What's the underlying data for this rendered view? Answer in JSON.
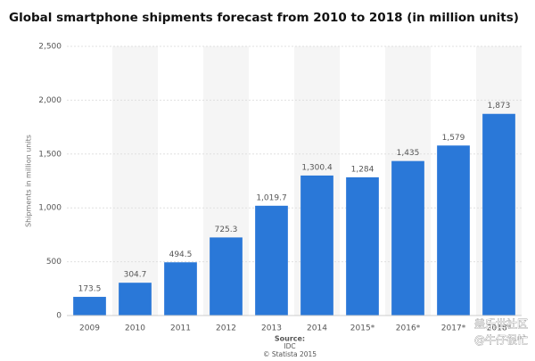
{
  "chart_data": {
    "type": "bar",
    "title": "Global smartphone shipments forecast from 2010 to 2018 (in million units)",
    "y_label": "Shipments in million units",
    "categories": [
      "2009",
      "2010",
      "2011",
      "2012",
      "2013",
      "2014",
      "2015*",
      "2016*",
      "2017*",
      "2018*"
    ],
    "values": [
      173.5,
      304.7,
      494.5,
      725.3,
      1019.7,
      1300.4,
      1284,
      1435,
      1579,
      1873
    ],
    "value_labels": [
      "173.5",
      "304.7",
      "494.5",
      "725.3",
      "1,019.7",
      "1,300.4",
      "1,284",
      "1,435",
      "1,579",
      "1,873"
    ],
    "color": "#2a78d8",
    "ylim": [
      0,
      2500
    ],
    "yticks": [
      0,
      500,
      {
        "value": 1000,
        "label": "1,000"
      },
      {
        "value": 1500,
        "label": "1,500"
      },
      {
        "value": 2000,
        "label": "2,000"
      },
      {
        "value": 2500,
        "label": "2,500"
      }
    ],
    "grid": true,
    "source_label": "Source:",
    "source": "IDC",
    "copyright": "© Statista 2015",
    "watermark": [
      "盖乐世社区",
      "@牛仔很忙"
    ]
  }
}
